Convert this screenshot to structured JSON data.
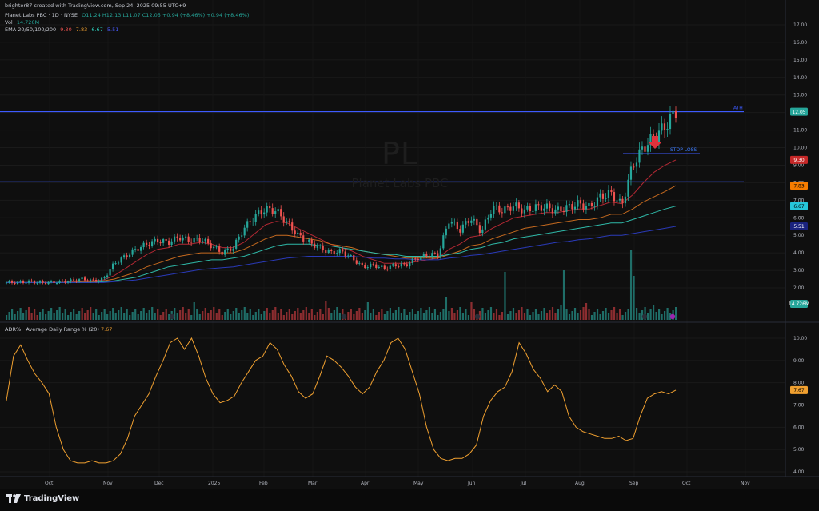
{
  "header": {
    "credit": "brighter87 created with TradingView.com, Sep 24, 2025 09:55 UTC+9"
  },
  "legend": {
    "symbol": "Planet Labs PBC · 1D · NYSE",
    "ohlc": "O11.24 H12.13 L11.07 C12.05 +0.94 (+8.46%) +0.94 (+8.46%)",
    "vol_label": "Vol",
    "vol_value": "14.726M",
    "ema_label": "EMA 20/50/100/200",
    "ema_values": [
      "9.30",
      "7.83",
      "6.67",
      "5.51"
    ]
  },
  "watermark": {
    "ticker": "PL",
    "name": "Planet Labs PBC"
  },
  "annotations": {
    "ath_label": "ATH",
    "stop_loss_label": "STOP LOSS"
  },
  "price_tags": {
    "last": "12.05",
    "ema20": "9.30",
    "ema50": "7.83",
    "ema100": "6.67",
    "ema200": "5.51",
    "volume": "14.726M",
    "adr": "7.67"
  },
  "adr_legend": {
    "label": "ADR% · Average Daily Range % (20)",
    "value": "7.67"
  },
  "footer": {
    "brand": "TradingView"
  },
  "colors": {
    "up": "#26a69a",
    "down": "#ef5350",
    "ema20": "#b22833",
    "ema50": "#c66a1f",
    "ema100": "#2fb9a8",
    "ema200": "#2a3ab8",
    "hline": "#3d5afe",
    "adr": "#f0a030",
    "last_tag": "#26a69a"
  },
  "chart_data": [
    {
      "type": "line",
      "title": "",
      "price_axis": [
        "17.00",
        "16.00",
        "15.00",
        "14.00",
        "13.00",
        "12.00",
        "11.00",
        "10.00",
        "9.00",
        "8.00",
        "7.00",
        "6.00",
        "5.00",
        "4.00",
        "3.00",
        "2.00"
      ],
      "ylim": [
        1.5,
        17.6
      ],
      "time_axis": [
        "Oct",
        "Nov",
        "Dec",
        "2025",
        "Feb",
        "Mar",
        "Apr",
        "May",
        "Jun",
        "Jul",
        "Aug",
        "Sep",
        "Oct",
        "Nov"
      ],
      "horizontal_levels": [
        {
          "name": "ATH",
          "value": 12.05
        },
        {
          "name": "STOP LOSS",
          "value": 9.65
        },
        {
          "name": "",
          "value": 8.05
        }
      ],
      "series": [
        {
          "role": "close",
          "values": [
            2.3,
            2.3,
            2.35,
            2.3,
            2.3,
            2.35,
            2.4,
            2.5,
            2.4,
            2.5,
            3.4,
            3.8,
            4.2,
            4.5,
            4.7,
            4.6,
            4.9,
            4.7,
            4.8,
            4.4,
            4.0,
            4.3,
            5.4,
            6.1,
            6.5,
            6.4,
            5.7,
            5.0,
            4.6,
            4.3,
            4.0,
            4.1,
            3.7,
            3.2,
            3.3,
            3.1,
            3.3,
            3.3,
            3.7,
            3.9,
            3.9,
            5.9,
            5.3,
            6.0,
            5.2,
            6.6,
            6.4,
            6.7,
            6.4,
            6.6,
            6.6,
            6.4,
            6.6,
            6.8,
            6.6,
            7.2,
            7.4,
            6.7,
            9.0,
            10.0,
            10.6,
            11.2,
            12.05
          ]
        },
        {
          "role": "ema20",
          "values": [
            2.3,
            2.3,
            2.3,
            2.3,
            2.3,
            2.3,
            2.35,
            2.4,
            2.4,
            2.45,
            2.7,
            3.1,
            3.5,
            3.9,
            4.2,
            4.3,
            4.5,
            4.5,
            4.6,
            4.5,
            4.3,
            4.3,
            4.6,
            5.1,
            5.6,
            5.8,
            5.7,
            5.4,
            5.1,
            4.8,
            4.5,
            4.3,
            4.1,
            3.8,
            3.6,
            3.4,
            3.4,
            3.4,
            3.5,
            3.6,
            3.7,
            4.2,
            4.5,
            4.9,
            5.0,
            5.4,
            5.7,
            6.0,
            6.1,
            6.2,
            6.3,
            6.3,
            6.4,
            6.5,
            6.5,
            6.7,
            6.9,
            6.8,
            7.3,
            8.0,
            8.6,
            9.0,
            9.3
          ]
        },
        {
          "role": "ema50",
          "values": [
            2.3,
            2.3,
            2.3,
            2.3,
            2.3,
            2.3,
            2.3,
            2.35,
            2.35,
            2.4,
            2.5,
            2.7,
            2.9,
            3.2,
            3.4,
            3.6,
            3.8,
            3.9,
            4.0,
            4.0,
            4.0,
            4.0,
            4.2,
            4.5,
            4.8,
            5.0,
            5.0,
            4.9,
            4.8,
            4.7,
            4.5,
            4.4,
            4.3,
            4.1,
            4.0,
            3.9,
            3.8,
            3.7,
            3.7,
            3.7,
            3.7,
            3.9,
            4.1,
            4.4,
            4.5,
            4.8,
            5.0,
            5.2,
            5.4,
            5.5,
            5.6,
            5.7,
            5.8,
            5.9,
            5.9,
            6.0,
            6.2,
            6.2,
            6.5,
            6.9,
            7.2,
            7.5,
            7.83
          ]
        },
        {
          "role": "ema100",
          "values": [
            2.3,
            2.3,
            2.3,
            2.3,
            2.3,
            2.3,
            2.3,
            2.3,
            2.3,
            2.35,
            2.4,
            2.5,
            2.6,
            2.8,
            3.0,
            3.2,
            3.3,
            3.4,
            3.5,
            3.6,
            3.6,
            3.7,
            3.8,
            4.0,
            4.2,
            4.4,
            4.5,
            4.5,
            4.5,
            4.4,
            4.4,
            4.3,
            4.2,
            4.1,
            4.0,
            3.9,
            3.9,
            3.8,
            3.8,
            3.8,
            3.8,
            3.9,
            4.0,
            4.2,
            4.3,
            4.5,
            4.6,
            4.8,
            4.9,
            5.0,
            5.1,
            5.2,
            5.3,
            5.4,
            5.5,
            5.6,
            5.7,
            5.7,
            5.9,
            6.1,
            6.3,
            6.5,
            6.67
          ]
        },
        {
          "role": "ema200",
          "values": [
            2.3,
            2.3,
            2.3,
            2.3,
            2.3,
            2.3,
            2.3,
            2.3,
            2.3,
            2.3,
            2.35,
            2.4,
            2.45,
            2.55,
            2.65,
            2.75,
            2.85,
            2.95,
            3.05,
            3.1,
            3.15,
            3.2,
            3.3,
            3.4,
            3.5,
            3.6,
            3.7,
            3.75,
            3.8,
            3.8,
            3.8,
            3.8,
            3.8,
            3.75,
            3.7,
            3.7,
            3.65,
            3.65,
            3.6,
            3.6,
            3.6,
            3.7,
            3.75,
            3.85,
            3.9,
            4.0,
            4.1,
            4.2,
            4.3,
            4.4,
            4.5,
            4.6,
            4.65,
            4.75,
            4.8,
            4.9,
            5.0,
            5.0,
            5.1,
            5.2,
            5.3,
            5.4,
            5.51
          ]
        }
      ]
    },
    {
      "type": "line",
      "title": "",
      "series_name": "ADR% · Average Daily Range % (20)",
      "price_axis": [
        "10.00",
        "9.00",
        "8.00",
        "7.00",
        "6.00",
        "5.00",
        "4.00"
      ],
      "ylim": [
        3.9,
        10.3
      ],
      "values": [
        7.2,
        9.2,
        9.7,
        9.0,
        8.4,
        8.0,
        7.5,
        6.0,
        5.0,
        4.5,
        4.4,
        4.4,
        4.5,
        4.4,
        4.4,
        4.5,
        4.8,
        5.5,
        6.5,
        7.0,
        7.5,
        8.3,
        9.0,
        9.8,
        10.0,
        9.5,
        10.0,
        9.2,
        8.2,
        7.5,
        7.1,
        7.2,
        7.4,
        8.0,
        8.5,
        9.0,
        9.2,
        9.8,
        9.5,
        8.8,
        8.3,
        7.6,
        7.3,
        7.5,
        8.3,
        9.2,
        9.0,
        8.7,
        8.3,
        7.8,
        7.5,
        7.8,
        8.5,
        9.0,
        9.8,
        10.0,
        9.5,
        8.5,
        7.5,
        6.0,
        5.0,
        4.6,
        4.5,
        4.6,
        4.6,
        4.8,
        5.2,
        6.5,
        7.2,
        7.6,
        7.8,
        8.5,
        9.8,
        9.3,
        8.6,
        8.2,
        7.6,
        7.9,
        7.6,
        6.5,
        6.0,
        5.8,
        5.7,
        5.6,
        5.5,
        5.5,
        5.6,
        5.4,
        5.5,
        6.5,
        7.3,
        7.5,
        7.6,
        7.5,
        7.67
      ]
    }
  ]
}
